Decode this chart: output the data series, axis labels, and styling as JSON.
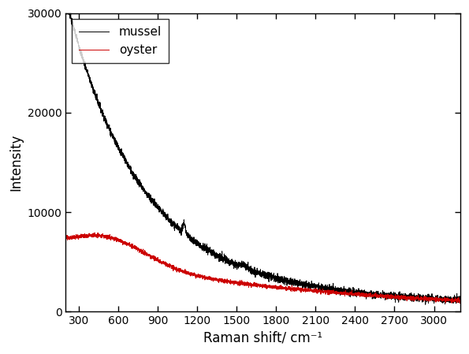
{
  "xlabel": "Raman shift/ cm⁻¹",
  "ylabel": "Intensity",
  "xlim": [
    200,
    3200
  ],
  "ylim": [
    0,
    30000
  ],
  "xticks": [
    300,
    600,
    900,
    1200,
    1500,
    1800,
    2100,
    2400,
    2700,
    3000
  ],
  "yticks": [
    0,
    10000,
    20000,
    30000
  ],
  "legend_mussel": "mussel",
  "legend_oyster": "oyster",
  "mussel_color": "#000000",
  "oyster_color": "#cc0000",
  "background_color": "#ffffff",
  "linewidth": 0.7,
  "noise_mussel": 180,
  "noise_oyster": 100
}
